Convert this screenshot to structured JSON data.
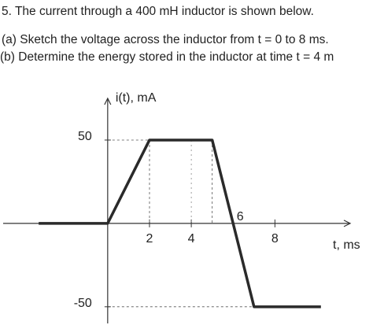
{
  "problem": {
    "lines": [
      "5.  The current through a 400 mH inductor is shown below.",
      "(a) Sketch the voltage across the inductor from t = 0 to 8 ms.",
      "(b) Determine the energy stored in the inductor at time t = 4 m"
    ]
  },
  "chart_data": {
    "type": "line",
    "x": [
      -3.3,
      0,
      2,
      5,
      7,
      10.2
    ],
    "series": [
      {
        "name": "i(t)",
        "color": "#2a2a2a",
        "values": [
          0,
          0,
          50,
          50,
          -50,
          -50
        ]
      }
    ],
    "y_label": "i(t), mA",
    "x_label": "t, ms",
    "xlim": [
      -5,
      11.6
    ],
    "ylim": [
      -60,
      75
    ],
    "xticks": [
      2,
      4,
      6,
      8
    ],
    "yticks": [
      50,
      -50
    ]
  }
}
